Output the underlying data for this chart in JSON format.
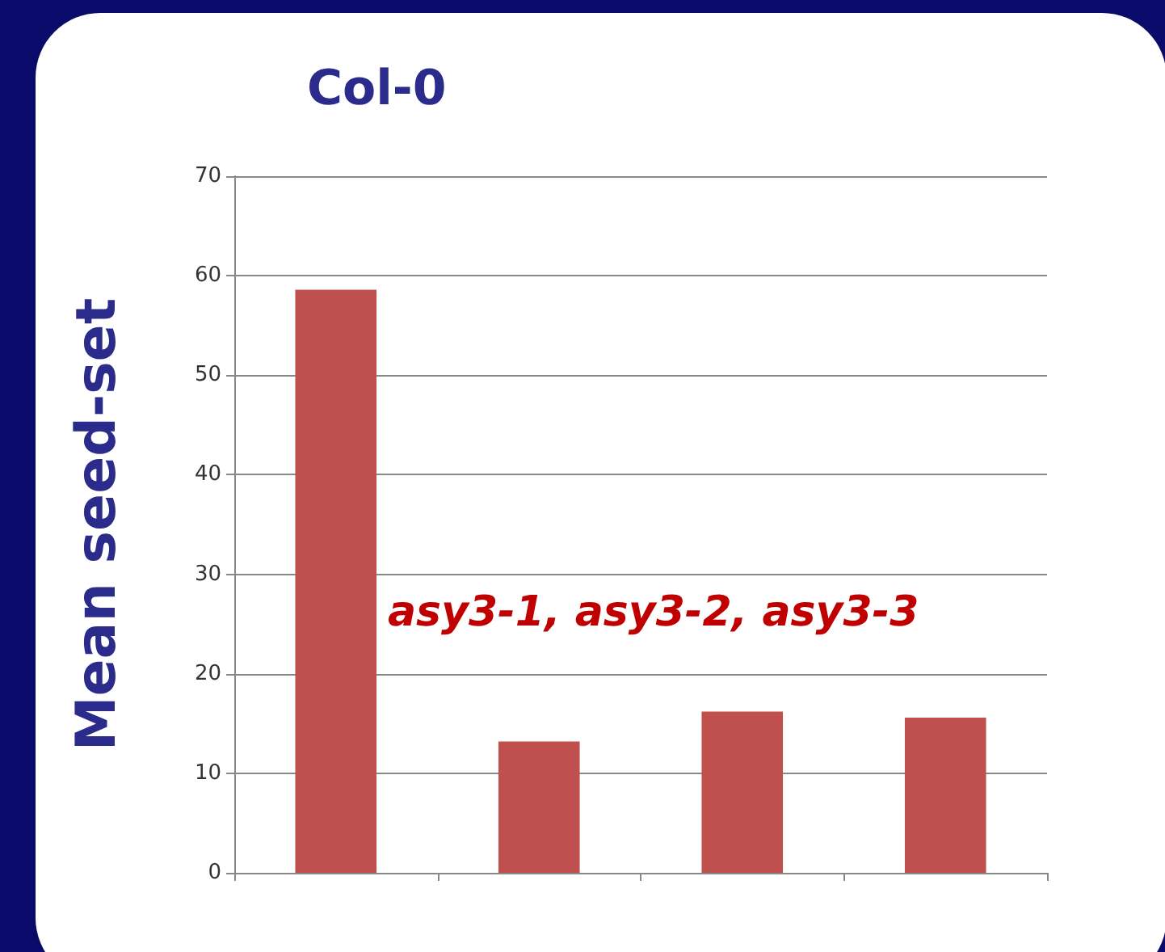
{
  "chart_data": {
    "type": "bar",
    "ylabel": "Mean seed-set",
    "annotations": [
      "Col-0",
      "asy3-1, asy3-2, asy3-3"
    ],
    "categories": [
      null,
      null,
      null,
      null
    ],
    "values": [
      58.6,
      13.2,
      16.2,
      15.6
    ],
    "color": "#c0504d",
    "ylim": [
      0,
      70
    ],
    "yticks": [
      0,
      10,
      20,
      30,
      40,
      50,
      60,
      70
    ],
    "grid": "y"
  }
}
